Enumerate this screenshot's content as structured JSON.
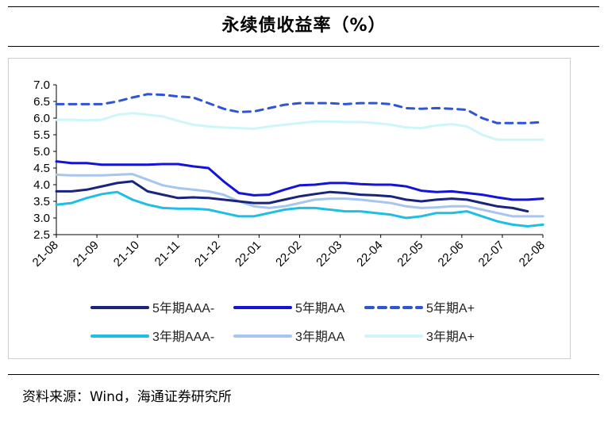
{
  "title": "永续债收益率（%）",
  "source": "资料来源：Wind，海通证券研究所",
  "chart_data": {
    "type": "line",
    "title": "永续债收益率（%）",
    "xlabel": "",
    "ylabel": "",
    "ylim": [
      2.5,
      7.0
    ],
    "yticks": [
      "7.0",
      "6.5",
      "6.0",
      "5.5",
      "5.0",
      "4.5",
      "4.0",
      "3.5",
      "3.0",
      "2.5"
    ],
    "xticks": [
      "21-08",
      "21-09",
      "21-10",
      "21-11",
      "21-12",
      "22-01",
      "22-02",
      "22-03",
      "22-04",
      "22-05",
      "22-06",
      "22-07",
      "22-08"
    ],
    "grid": false,
    "legend_position": "bottom",
    "series": [
      {
        "name": "5年期AAA-",
        "color": "#1a237e",
        "dash": "solid",
        "values": [
          3.8,
          3.8,
          3.85,
          3.95,
          4.05,
          4.1,
          3.8,
          3.7,
          3.6,
          3.62,
          3.6,
          3.55,
          3.5,
          3.45,
          3.45,
          3.55,
          3.65,
          3.72,
          3.78,
          3.75,
          3.7,
          3.68,
          3.65,
          3.55,
          3.5,
          3.55,
          3.58,
          3.55,
          3.45,
          3.35,
          3.3,
          3.2
        ]
      },
      {
        "name": "5年期AA",
        "color": "#1414d8",
        "dash": "solid",
        "values": [
          4.7,
          4.65,
          4.65,
          4.6,
          4.6,
          4.6,
          4.6,
          4.62,
          4.62,
          4.55,
          4.5,
          4.1,
          3.75,
          3.68,
          3.7,
          3.85,
          3.98,
          4.0,
          4.05,
          4.05,
          4.02,
          4.0,
          4.0,
          3.95,
          3.82,
          3.78,
          3.8,
          3.75,
          3.7,
          3.62,
          3.55,
          3.55,
          3.58
        ]
      },
      {
        "name": "5年期A+",
        "color": "#2f55d4",
        "dash": "dashed",
        "values": [
          6.42,
          6.42,
          6.42,
          6.42,
          6.5,
          6.62,
          6.72,
          6.7,
          6.65,
          6.62,
          6.45,
          6.28,
          6.18,
          6.2,
          6.3,
          6.4,
          6.45,
          6.45,
          6.45,
          6.42,
          6.45,
          6.45,
          6.42,
          6.3,
          6.28,
          6.3,
          6.28,
          6.25,
          6.0,
          5.85,
          5.85,
          5.85,
          5.88
        ]
      },
      {
        "name": "3年期AAA-",
        "color": "#1fbfe3",
        "dash": "solid",
        "values": [
          3.4,
          3.45,
          3.6,
          3.72,
          3.78,
          3.55,
          3.4,
          3.3,
          3.28,
          3.28,
          3.25,
          3.15,
          3.05,
          3.05,
          3.15,
          3.25,
          3.3,
          3.3,
          3.25,
          3.2,
          3.2,
          3.15,
          3.1,
          3.0,
          3.05,
          3.15,
          3.15,
          3.2,
          3.05,
          2.9,
          2.8,
          2.75,
          2.8
        ]
      },
      {
        "name": "3年期AA",
        "color": "#a6c6ef",
        "dash": "solid",
        "values": [
          4.3,
          4.28,
          4.28,
          4.28,
          4.3,
          4.32,
          4.15,
          3.98,
          3.9,
          3.85,
          3.8,
          3.7,
          3.5,
          3.35,
          3.3,
          3.35,
          3.45,
          3.55,
          3.58,
          3.58,
          3.55,
          3.5,
          3.45,
          3.35,
          3.3,
          3.32,
          3.35,
          3.35,
          3.25,
          3.15,
          3.05,
          3.05,
          3.05
        ]
      },
      {
        "name": "3年期A+",
        "color": "#cef6f8",
        "dash": "solid",
        "values": [
          5.95,
          5.95,
          5.93,
          5.95,
          6.1,
          6.15,
          6.1,
          6.05,
          5.92,
          5.8,
          5.75,
          5.72,
          5.7,
          5.68,
          5.75,
          5.8,
          5.85,
          5.9,
          5.9,
          5.88,
          5.88,
          5.85,
          5.8,
          5.72,
          5.7,
          5.78,
          5.82,
          5.75,
          5.5,
          5.35,
          5.35,
          5.35,
          5.35
        ]
      }
    ]
  }
}
